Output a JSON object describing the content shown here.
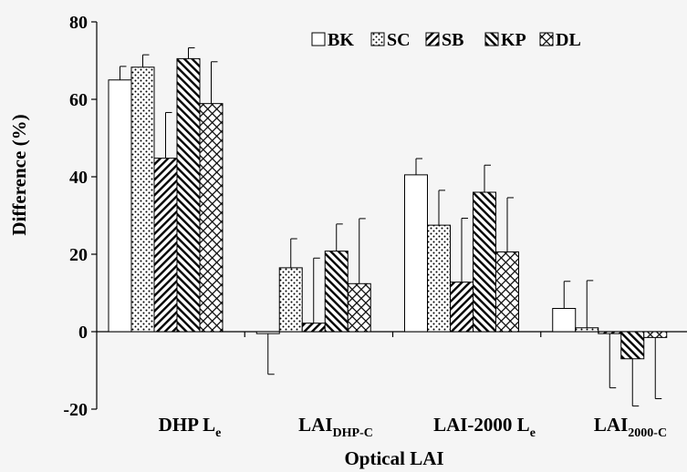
{
  "chart_data": {
    "type": "bar",
    "title": "",
    "xlabel": "Optical LAI",
    "ylabel": "Difference (%)",
    "ylim": [
      -20,
      80
    ],
    "yticks": [
      -20,
      0,
      20,
      40,
      60,
      80
    ],
    "grid": false,
    "legend_position": "top-right",
    "categories": [
      {
        "main": "DHP L",
        "sub": "e"
      },
      {
        "main": "LAI",
        "sub": "DHP-C"
      },
      {
        "main": "LAI-2000 L",
        "sub": "e"
      },
      {
        "main": "LAI",
        "sub": "2000-C"
      }
    ],
    "series": [
      {
        "name": "BK",
        "pattern": "blank",
        "values": [
          65,
          -0.5,
          40.5,
          6
        ],
        "errors": [
          3.5,
          10.5,
          4.2,
          7
        ]
      },
      {
        "name": "SC",
        "pattern": "dots",
        "values": [
          68.3,
          16.5,
          27.5,
          1
        ],
        "errors": [
          3.2,
          7.5,
          9,
          12.2
        ]
      },
      {
        "name": "SB",
        "pattern": "diag-fwd",
        "values": [
          44.8,
          2.2,
          12.8,
          -0.5
        ],
        "errors": [
          11.8,
          16.8,
          16.5,
          14
        ]
      },
      {
        "name": "KP",
        "pattern": "diag-back",
        "values": [
          70.5,
          20.8,
          36,
          -7
        ],
        "errors": [
          2.8,
          7,
          7,
          12.2
        ]
      },
      {
        "name": "DL",
        "pattern": "cross",
        "values": [
          58.9,
          12.4,
          20.6,
          -1.5
        ],
        "errors": [
          10.8,
          16.8,
          14,
          15.8
        ]
      }
    ]
  }
}
